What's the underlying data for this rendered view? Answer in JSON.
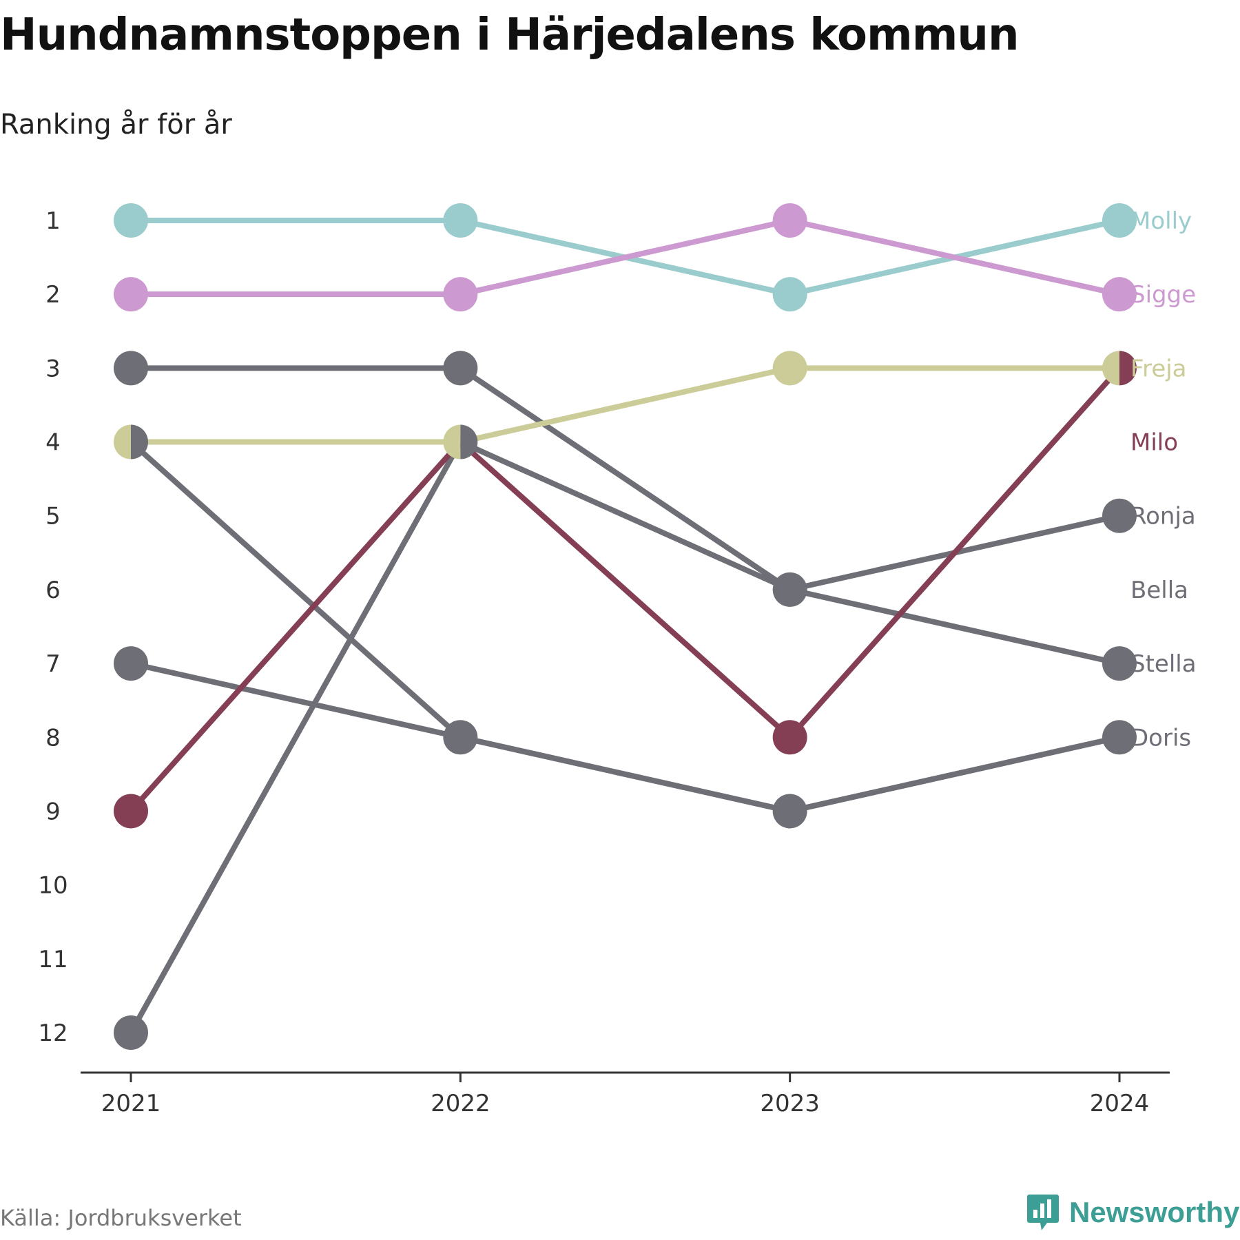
{
  "title": "Hundnamnstoppen i Härjedalens kommun",
  "subtitle": "Ranking år för år",
  "source": "Källa: Jordbruksverket",
  "brand": {
    "name": "Newsworthy",
    "icon": "newsworthy-chart-bubble-icon",
    "color": "#3c9e94"
  },
  "chart_data": {
    "type": "line",
    "variant": "bump",
    "x": [
      "2021",
      "2022",
      "2023",
      "2024"
    ],
    "y_ticks": [
      "1",
      "2",
      "3",
      "4",
      "5",
      "6",
      "7",
      "8",
      "9",
      "10",
      "11",
      "12"
    ],
    "ylim": [
      1,
      12
    ],
    "y_inverted": true,
    "grid": false,
    "legend": "direct labels at right end",
    "series": [
      {
        "name": "Molly",
        "color": "#9acccd",
        "values": [
          1,
          1,
          2,
          1
        ]
      },
      {
        "name": "Sigge",
        "color": "#cc9ad0",
        "values": [
          2,
          2,
          1,
          2
        ]
      },
      {
        "name": "Ronja",
        "color": "#6e6e76",
        "values": [
          3,
          3,
          6,
          5
        ]
      },
      {
        "name": "Bella",
        "color": "#6e6e76",
        "values": [
          4,
          8,
          9,
          8
        ]
      },
      {
        "name": "Stella",
        "color": "#6e6e76",
        "values": [
          12,
          4,
          6,
          7
        ]
      },
      {
        "name": "Doris",
        "color": "#6e6e76",
        "values": [
          7,
          8,
          9,
          8
        ]
      },
      {
        "name": "Milo",
        "color": "#843f55",
        "values": [
          9,
          4,
          8,
          3
        ]
      },
      {
        "name": "Freja",
        "color": "#cccc98",
        "values": [
          4,
          4,
          3,
          3
        ]
      }
    ],
    "end_labels": [
      "Molly",
      "Sigge",
      "Freja",
      "Milo",
      "Ronja",
      "Bella",
      "Stella",
      "Doris"
    ]
  }
}
